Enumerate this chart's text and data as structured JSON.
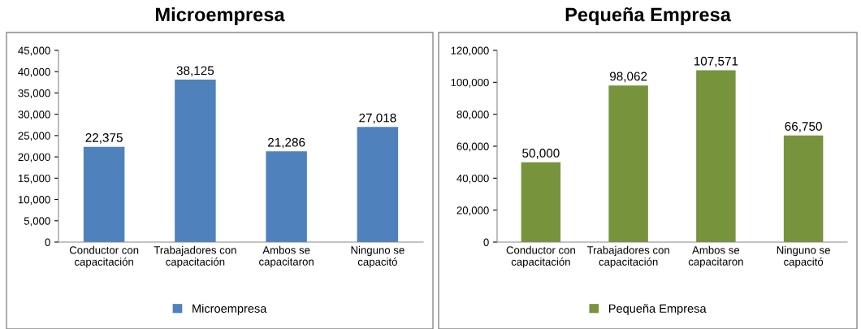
{
  "chart_data": [
    {
      "type": "bar",
      "title": "Microempresa",
      "categories": [
        "Conductor con\ncapacitación",
        "Trabajadores con\ncapacitación",
        "Ambos se\ncapacitaron",
        "Ninguno se\ncapacitó"
      ],
      "series": [
        {
          "name": "Microempresa",
          "color": "#4f81bd",
          "values": [
            22375,
            38125,
            21286,
            27018
          ]
        }
      ],
      "ylim": [
        0,
        45000
      ],
      "yticks": [
        {
          "value": 0,
          "label": "0"
        },
        {
          "value": 5000,
          "label": "5,000"
        },
        {
          "value": 10000,
          "label": "10,000"
        },
        {
          "value": 15000,
          "label": "15,000"
        },
        {
          "value": 20000,
          "label": "20,000"
        },
        {
          "value": 25000,
          "label": "25,000"
        },
        {
          "value": 30000,
          "label": "30,000"
        },
        {
          "value": 35000,
          "label": "35,000"
        },
        {
          "value": 40000,
          "label": "40,000"
        },
        {
          "value": 45000,
          "label": "45,000"
        }
      ],
      "value_labels": [
        "22,375",
        "38,125",
        "21,286",
        "27,018"
      ],
      "grid": false,
      "legend": "bottom"
    },
    {
      "type": "bar",
      "title": "Pequeña Empresa",
      "categories": [
        "Conductor con\ncapacitación",
        "Trabajadores con\ncapacitación",
        "Ambos se\ncapacitaron",
        "Ninguno se\ncapacitó"
      ],
      "series": [
        {
          "name": "Pequeña Empresa",
          "color": "#77933c",
          "values": [
            50000,
            98062,
            107571,
            66750
          ]
        }
      ],
      "ylim": [
        0,
        120000
      ],
      "yticks": [
        {
          "value": 0,
          "label": "0"
        },
        {
          "value": 20000,
          "label": "20,000"
        },
        {
          "value": 40000,
          "label": "40,000"
        },
        {
          "value": 60000,
          "label": "60,000"
        },
        {
          "value": 80000,
          "label": "80,000"
        },
        {
          "value": 100000,
          "label": "100,000"
        },
        {
          "value": 120000,
          "label": "120,000"
        }
      ],
      "value_labels": [
        "50,000",
        "98,062",
        "107,571",
        "66,750"
      ],
      "grid": false,
      "legend": "bottom"
    }
  ]
}
